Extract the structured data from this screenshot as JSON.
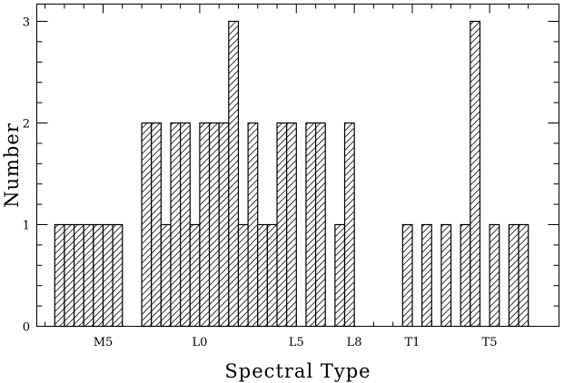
{
  "chart_data": {
    "type": "bar",
    "title": "",
    "xlabel": "Spectral Type",
    "ylabel": "Number",
    "ylim": [
      0,
      3.2
    ],
    "yticks": [
      0,
      1,
      2,
      3
    ],
    "xlim": [
      -3,
      22
    ],
    "xticks": [
      {
        "x": 0,
        "label": "M5"
      },
      {
        "x": 5,
        "label": "L0"
      },
      {
        "x": 10,
        "label": "L5"
      },
      {
        "x": 13,
        "label": "L8"
      },
      {
        "x": 16,
        "label": "T1"
      },
      {
        "x": 20,
        "label": "T5"
      }
    ],
    "bin_width": 0.5,
    "bins": [
      {
        "x": -2.5,
        "value": 1
      },
      {
        "x": -2.0,
        "value": 1
      },
      {
        "x": -1.5,
        "value": 1
      },
      {
        "x": -1.0,
        "value": 1
      },
      {
        "x": -0.5,
        "value": 1
      },
      {
        "x": 0.0,
        "value": 1
      },
      {
        "x": 0.5,
        "value": 1
      },
      {
        "x": 1.0,
        "value": 0
      },
      {
        "x": 1.5,
        "value": 0
      },
      {
        "x": 2.0,
        "value": 2
      },
      {
        "x": 2.5,
        "value": 2
      },
      {
        "x": 3.0,
        "value": 1
      },
      {
        "x": 3.5,
        "value": 2
      },
      {
        "x": 4.0,
        "value": 2
      },
      {
        "x": 4.5,
        "value": 1
      },
      {
        "x": 5.0,
        "value": 2
      },
      {
        "x": 5.5,
        "value": 2
      },
      {
        "x": 6.0,
        "value": 2
      },
      {
        "x": 6.5,
        "value": 3
      },
      {
        "x": 7.0,
        "value": 1
      },
      {
        "x": 7.5,
        "value": 2
      },
      {
        "x": 8.0,
        "value": 1
      },
      {
        "x": 8.5,
        "value": 1
      },
      {
        "x": 9.0,
        "value": 2
      },
      {
        "x": 9.5,
        "value": 2
      },
      {
        "x": 10.0,
        "value": 0
      },
      {
        "x": 10.5,
        "value": 2
      },
      {
        "x": 11.0,
        "value": 2
      },
      {
        "x": 11.5,
        "value": 0
      },
      {
        "x": 12.0,
        "value": 1
      },
      {
        "x": 12.5,
        "value": 2
      },
      {
        "x": 13.0,
        "value": 0
      },
      {
        "x": 13.5,
        "value": 0
      },
      {
        "x": 14.0,
        "value": 0
      },
      {
        "x": 14.5,
        "value": 0
      },
      {
        "x": 15.0,
        "value": 0
      },
      {
        "x": 15.5,
        "value": 1
      },
      {
        "x": 16.0,
        "value": 0
      },
      {
        "x": 16.5,
        "value": 1
      },
      {
        "x": 17.0,
        "value": 0
      },
      {
        "x": 17.5,
        "value": 1
      },
      {
        "x": 18.0,
        "value": 0
      },
      {
        "x": 18.5,
        "value": 1
      },
      {
        "x": 19.0,
        "value": 3
      },
      {
        "x": 19.5,
        "value": 0
      },
      {
        "x": 20.0,
        "value": 1
      },
      {
        "x": 20.5,
        "value": 0
      },
      {
        "x": 21.0,
        "value": 1
      },
      {
        "x": 21.5,
        "value": 1
      }
    ],
    "fill": "hatched",
    "bar_color": "#000000"
  }
}
